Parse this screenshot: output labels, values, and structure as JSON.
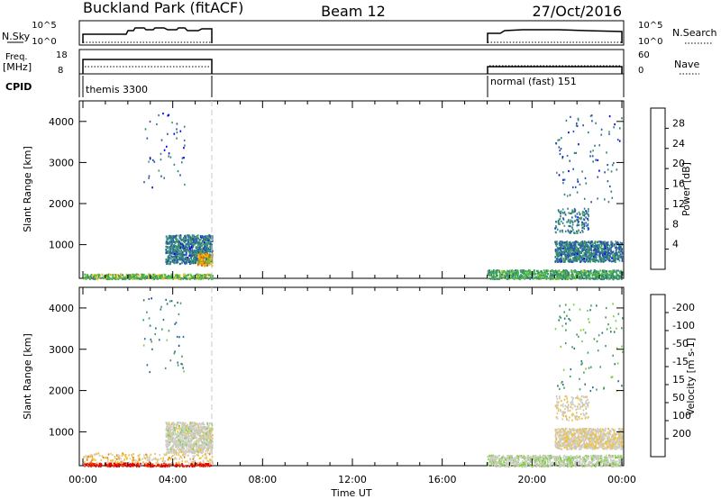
{
  "header": {
    "left": "Buckland Park (fitACF)",
    "center": "Beam 12",
    "right": "27/Oct/2016"
  },
  "panel_labels": {
    "nsky": "N.Sky",
    "nsearch": "N.Search",
    "freq": "Freq.",
    "freq_unit": "[MHz]",
    "nave": "Nave",
    "cpid": "CPID"
  },
  "axes_top": {
    "nsky_ticks": [
      "10^5",
      "10^0"
    ],
    "nsearch_ticks": [
      "10^5",
      "10^0"
    ],
    "freq_ticks": [
      "18",
      "8"
    ],
    "nave_ticks": [
      "60",
      "0"
    ]
  },
  "cpid_blocks": [
    {
      "label": "themis 3300"
    },
    {
      "label": "normal (fast) 151"
    }
  ],
  "colors": {
    "power": [
      "#0000e0",
      "#2c52b0",
      "#2f7f87",
      "#3f9e5f",
      "#55c040",
      "#f0c020",
      "#f0a000",
      "#e05000",
      "#d00000"
    ],
    "velocity": [
      "#e00000",
      "#f04000",
      "#f08000",
      "#f0c040",
      "#d0d0c8",
      "#c8c8c0",
      "#7fcf40",
      "#3f9e5f",
      "#2f6f8f",
      "#2040c0"
    ]
  },
  "chart_data": [
    {
      "type": "heatmap",
      "title": "",
      "xlabel": "",
      "ylabel": "Slant Range [km]",
      "xlim": [
        "00:00",
        "24:00"
      ],
      "ylim": [
        180,
        4500
      ],
      "x_ticks": [
        "00:00",
        "04:00",
        "08:00",
        "12:00",
        "16:00",
        "20:00",
        "00:00"
      ],
      "y_ticks": [
        "1000",
        "2000",
        "3000",
        "4000"
      ],
      "colorbar": {
        "label": "Power [dB]",
        "ticks": [
          "4",
          "8",
          "12",
          "16",
          "20",
          "24",
          "28"
        ],
        "range": [
          0,
          30
        ]
      },
      "data_windows": [
        {
          "start": "00:00",
          "end": "05:45"
        },
        {
          "start": "17:55",
          "end": "24:00"
        }
      ],
      "scatter_regions": [
        {
          "x": [
            "03:40",
            "05:45"
          ],
          "y": [
            550,
            1250
          ],
          "value": 8,
          "density": "high"
        },
        {
          "x": [
            "05:05",
            "05:45"
          ],
          "y": [
            500,
            800
          ],
          "value": 20,
          "density": "high"
        },
        {
          "x": [
            "00:00",
            "05:45"
          ],
          "y": [
            180,
            300
          ],
          "value": 14,
          "density": "high"
        },
        {
          "x": [
            "02:40",
            "04:30"
          ],
          "y": [
            2400,
            4300
          ],
          "value": 6,
          "density": "low"
        },
        {
          "x": [
            "21:00",
            "24:00"
          ],
          "y": [
            600,
            1100
          ],
          "value": 8,
          "density": "high"
        },
        {
          "x": [
            "21:00",
            "22:30"
          ],
          "y": [
            1300,
            1900
          ],
          "value": 8,
          "density": "medium"
        },
        {
          "x": [
            "18:00",
            "24:00"
          ],
          "y": [
            180,
            400
          ],
          "value": 12,
          "density": "high"
        },
        {
          "x": [
            "21:00",
            "24:00"
          ],
          "y": [
            2000,
            4200
          ],
          "value": 6,
          "density": "low"
        }
      ]
    },
    {
      "type": "heatmap",
      "title": "",
      "xlabel": "Time UT",
      "ylabel": "Slant Range [km]",
      "xlim": [
        "00:00",
        "24:00"
      ],
      "ylim": [
        180,
        4500
      ],
      "x_ticks": [
        "00:00",
        "04:00",
        "08:00",
        "12:00",
        "16:00",
        "20:00",
        "00:00"
      ],
      "y_ticks": [
        "1000",
        "2000",
        "3000",
        "4000"
      ],
      "colorbar": {
        "label": "Velocity [m s-1]",
        "ticks": [
          "200",
          "100",
          "50",
          "15",
          "-15",
          "-50",
          "-100",
          "-200"
        ],
        "range": [
          -250,
          250
        ]
      },
      "data_windows": [
        {
          "start": "00:00",
          "end": "05:45"
        },
        {
          "start": "17:55",
          "end": "24:00"
        }
      ],
      "scatter_regions": [
        {
          "x": [
            "03:40",
            "05:45"
          ],
          "y": [
            500,
            1250
          ],
          "value": 0,
          "density": "high"
        },
        {
          "x": [
            "00:00",
            "05:45"
          ],
          "y": [
            180,
            260
          ],
          "value": -220,
          "density": "high"
        },
        {
          "x": [
            "00:00",
            "05:45"
          ],
          "y": [
            260,
            500
          ],
          "value": -60,
          "density": "medium"
        },
        {
          "x": [
            "02:40",
            "04:30"
          ],
          "y": [
            2400,
            4300
          ],
          "value": 150,
          "density": "low"
        },
        {
          "x": [
            "21:00",
            "24:00"
          ],
          "y": [
            600,
            1100
          ],
          "value": -30,
          "density": "high"
        },
        {
          "x": [
            "21:00",
            "22:30"
          ],
          "y": [
            1300,
            1900
          ],
          "value": -20,
          "density": "medium"
        },
        {
          "x": [
            "18:00",
            "24:00"
          ],
          "y": [
            180,
            450
          ],
          "value": 30,
          "density": "high"
        },
        {
          "x": [
            "21:00",
            "24:00"
          ],
          "y": [
            2000,
            4200
          ],
          "value": 120,
          "density": "low"
        }
      ]
    }
  ]
}
